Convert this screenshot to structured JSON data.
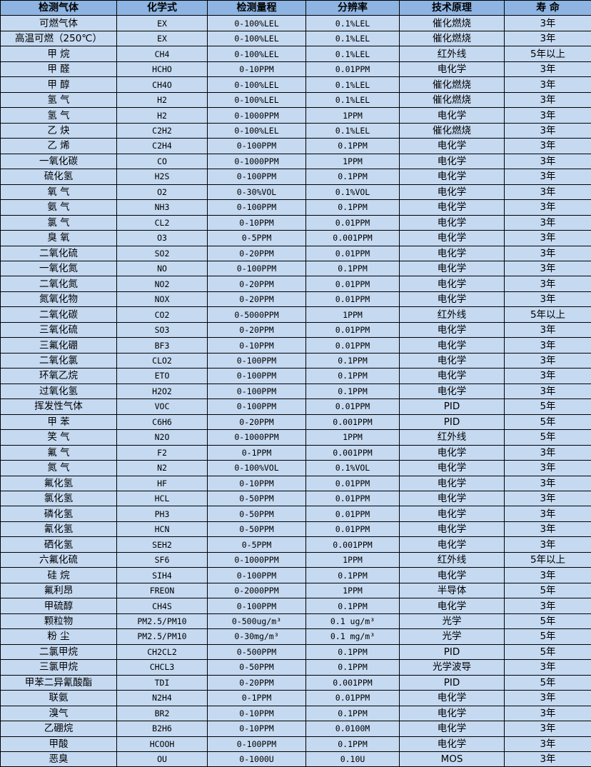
{
  "colors": {
    "header_bg": "#8db4e2",
    "row_bg": "#c5d9f1",
    "border": "#000000"
  },
  "table": {
    "headers": [
      "检测气体",
      "化学式",
      "检测量程",
      "分辨率",
      "技术原理",
      "寿 命"
    ],
    "rows": [
      [
        "可燃气体",
        "EX",
        "0-100%LEL",
        "0.1%LEL",
        "催化燃烧",
        "3年"
      ],
      [
        "高温可燃（250℃）",
        "EX",
        "0-100%LEL",
        "0.1%LEL",
        "催化燃烧",
        "3年"
      ],
      [
        "甲 烷",
        "CH4",
        "0-100%LEL",
        "0.1%LEL",
        "红外线",
        "5年以上"
      ],
      [
        "甲 醛",
        "HCHO",
        "0-10PPM",
        "0.01PPM",
        "电化学",
        "3年"
      ],
      [
        "甲 醇",
        "CH4O",
        "0-100%LEL",
        "0.1%LEL",
        "催化燃烧",
        "3年"
      ],
      [
        "氢 气",
        "H2",
        "0-100%LEL",
        "0.1%LEL",
        "催化燃烧",
        "3年"
      ],
      [
        "氢 气",
        "H2",
        "0-1000PPM",
        "1PPM",
        "电化学",
        "3年"
      ],
      [
        "乙 炔",
        "C2H2",
        "0-100%LEL",
        "0.1%LEL",
        "催化燃烧",
        "3年"
      ],
      [
        "乙 烯",
        "C2H4",
        "0-100PPM",
        "0.1PPM",
        "电化学",
        "3年"
      ],
      [
        "一氧化碳",
        "CO",
        "0-1000PPM",
        "1PPM",
        "电化学",
        "3年"
      ],
      [
        "硫化氢",
        "H2S",
        "0-100PPM",
        "0.1PPM",
        "电化学",
        "3年"
      ],
      [
        "氧 气",
        "O2",
        "0-30%VOL",
        "0.1%VOL",
        "电化学",
        "3年"
      ],
      [
        "氨 气",
        "NH3",
        "0-100PPM",
        "0.1PPM",
        "电化学",
        "3年"
      ],
      [
        "氯 气",
        "CL2",
        "0-10PPM",
        "0.01PPM",
        "电化学",
        "3年"
      ],
      [
        "臭 氧",
        "O3",
        "0-5PPM",
        "0.001PPM",
        "电化学",
        "3年"
      ],
      [
        "二氧化硫",
        "SO2",
        "0-20PPM",
        "0.01PPM",
        "电化学",
        "3年"
      ],
      [
        "一氧化氮",
        "NO",
        "0-100PPM",
        "0.1PPM",
        "电化学",
        "3年"
      ],
      [
        "二氧化氮",
        "NO2",
        "0-20PPM",
        "0.01PPM",
        "电化学",
        "3年"
      ],
      [
        "氮氧化物",
        "NOX",
        "0-20PPM",
        "0.01PPM",
        "电化学",
        "3年"
      ],
      [
        "二氧化碳",
        "CO2",
        "0-5000PPM",
        "1PPM",
        "红外线",
        "5年以上"
      ],
      [
        "三氧化硫",
        "SO3",
        "0-20PPM",
        "0.01PPM",
        "电化学",
        "3年"
      ],
      [
        "三氟化硼",
        "BF3",
        "0-10PPM",
        "0.01PPM",
        "电化学",
        "3年"
      ],
      [
        "二氧化氯",
        "CLO2",
        "0-100PPM",
        "0.1PPM",
        "电化学",
        "3年"
      ],
      [
        "环氧乙烷",
        "ETO",
        "0-100PPM",
        "0.1PPM",
        "电化学",
        "3年"
      ],
      [
        "过氧化氢",
        "H2O2",
        "0-100PPM",
        "0.1PPM",
        "电化学",
        "3年"
      ],
      [
        "挥发性气体",
        "VOC",
        "0-100PPM",
        "0.01PPM",
        "PID",
        "5年"
      ],
      [
        "甲 苯",
        "C6H6",
        "0-20PPM",
        "0.001PPM",
        "PID",
        "5年"
      ],
      [
        "笑 气",
        "N2O",
        "0-1000PPM",
        "1PPM",
        "红外线",
        "5年"
      ],
      [
        "氟 气",
        "F2",
        "0-1PPM",
        "0.001PPM",
        "电化学",
        "3年"
      ],
      [
        "氮 气",
        "N2",
        "0-100%VOL",
        "0.1%VOL",
        "电化学",
        "3年"
      ],
      [
        "氟化氢",
        "HF",
        "0-10PPM",
        "0.01PPM",
        "电化学",
        "3年"
      ],
      [
        "氯化氢",
        "HCL",
        "0-50PPM",
        "0.01PPM",
        "电化学",
        "3年"
      ],
      [
        "磷化氢",
        "PH3",
        "0-50PPM",
        "0.01PPM",
        "电化学",
        "3年"
      ],
      [
        "氰化氢",
        "HCN",
        "0-50PPM",
        "0.01PPM",
        "电化学",
        "3年"
      ],
      [
        "硒化氢",
        "SEH2",
        "0-5PPM",
        "0.001PPM",
        "电化学",
        "3年"
      ],
      [
        "六氟化硫",
        "SF6",
        "0-1000PPM",
        "1PPM",
        "红外线",
        "5年以上"
      ],
      [
        "硅 烷",
        "SIH4",
        "0-100PPM",
        "0.1PPM",
        "电化学",
        "3年"
      ],
      [
        "氟利昂",
        "FREON",
        "0-2000PPM",
        "1PPM",
        "半导体",
        "5年"
      ],
      [
        "甲硫醇",
        "CH4S",
        "0-100PPM",
        "0.1PPM",
        "电化学",
        "3年"
      ],
      [
        "颗粒物",
        "PM2.5/PM10",
        "0-500ug/m³",
        "0.1 ug/m³",
        "光学",
        "5年"
      ],
      [
        "粉 尘",
        "PM2.5/PM10",
        "0-30mg/m³",
        "0.1 mg/m³",
        "光学",
        "5年"
      ],
      [
        "二氯甲烷",
        "CH2CL2",
        "0-500PPM",
        "0.1PPM",
        "PID",
        "5年"
      ],
      [
        "三氯甲烷",
        "CHCL3",
        "0-50PPM",
        "0.1PPM",
        "光学波导",
        "3年"
      ],
      [
        "甲苯二异氰酸酯",
        "TDI",
        "0-20PPM",
        "0.001PPM",
        "PID",
        "5年"
      ],
      [
        "联氨",
        "N2H4",
        "0-1PPM",
        "0.01PPM",
        "电化学",
        "3年"
      ],
      [
        "溴气",
        "BR2",
        "0-10PPM",
        "0.1PPM",
        "电化学",
        "3年"
      ],
      [
        "乙硼烷",
        "B2H6",
        "0-10PPM",
        "0.0100M",
        "电化学",
        "3年"
      ],
      [
        "甲酸",
        "HCOOH",
        "0-100PPM",
        "0.1PPM",
        "电化学",
        "3年"
      ],
      [
        "恶臭",
        "OU",
        "0-1000U",
        "0.10U",
        "MOS",
        "3年"
      ]
    ]
  }
}
